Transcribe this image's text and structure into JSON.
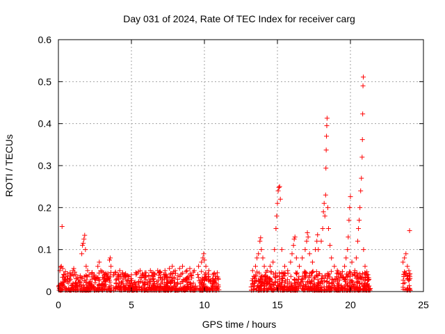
{
  "chart_data": {
    "type": "scatter",
    "title": "Day 031 of 2024, Rate Of TEC Index for receiver carg",
    "xlabel": "GPS time / hours",
    "ylabel": "ROTI / TECUs",
    "xlim": [
      0,
      25
    ],
    "ylim": [
      0,
      0.6
    ],
    "xticks": [
      0,
      5,
      10,
      15,
      20,
      25
    ],
    "xtick_labels": [
      "0",
      "5",
      "10",
      "15",
      "20",
      "25"
    ],
    "yticks": [
      0,
      0.1,
      0.2,
      0.3,
      0.4,
      0.5,
      0.6
    ],
    "ytick_labels": [
      "0",
      "0.1",
      "0.2",
      "0.3",
      "0.4",
      "0.5",
      "0.6"
    ],
    "grid": true,
    "marker": "+",
    "color": "#ff0000",
    "series": [
      {
        "name": "ROTI",
        "points": [
          [
            0.1,
            0.05
          ],
          [
            0.15,
            0.058
          ],
          [
            0.2,
            0.06
          ],
          [
            0.25,
            0.155
          ],
          [
            0.3,
            0.055
          ],
          [
            0.4,
            0.04
          ],
          [
            0.5,
            0.035
          ],
          [
            0.6,
            0.03
          ],
          [
            0.8,
            0.045
          ],
          [
            1.0,
            0.05
          ],
          [
            1.05,
            0.055
          ],
          [
            1.2,
            0.04
          ],
          [
            1.6,
            0.09
          ],
          [
            1.65,
            0.11
          ],
          [
            1.7,
            0.115
          ],
          [
            1.75,
            0.125
          ],
          [
            1.8,
            0.134
          ],
          [
            1.85,
            0.1
          ],
          [
            1.9,
            0.06
          ],
          [
            2.0,
            0.05
          ],
          [
            2.1,
            0.04
          ],
          [
            2.3,
            0.035
          ],
          [
            2.5,
            0.03
          ],
          [
            2.7,
            0.06
          ],
          [
            2.8,
            0.07
          ],
          [
            2.9,
            0.05
          ],
          [
            3.1,
            0.045
          ],
          [
            3.3,
            0.04
          ],
          [
            3.5,
            0.075
          ],
          [
            3.55,
            0.08
          ],
          [
            3.6,
            0.06
          ],
          [
            3.8,
            0.04
          ],
          [
            4.0,
            0.03
          ],
          [
            4.2,
            0.05
          ],
          [
            4.4,
            0.045
          ],
          [
            4.6,
            0.04
          ],
          [
            4.8,
            0.035
          ],
          [
            5.0,
            0.04
          ],
          [
            5.3,
            0.045
          ],
          [
            5.6,
            0.05
          ],
          [
            5.8,
            0.04
          ],
          [
            6.0,
            0.045
          ],
          [
            6.3,
            0.05
          ],
          [
            6.6,
            0.04
          ],
          [
            6.8,
            0.05
          ],
          [
            7.0,
            0.045
          ],
          [
            7.3,
            0.05
          ],
          [
            7.6,
            0.055
          ],
          [
            7.8,
            0.06
          ],
          [
            8.0,
            0.05
          ],
          [
            8.3,
            0.055
          ],
          [
            8.5,
            0.06
          ],
          [
            8.8,
            0.05
          ],
          [
            9.0,
            0.055
          ],
          [
            9.3,
            0.05
          ],
          [
            9.6,
            0.06
          ],
          [
            9.8,
            0.07
          ],
          [
            9.9,
            0.08
          ],
          [
            9.95,
            0.09
          ],
          [
            10.0,
            0.075
          ],
          [
            10.1,
            0.06
          ],
          [
            10.3,
            0.05
          ],
          [
            10.6,
            0.04
          ],
          [
            10.9,
            0.035
          ],
          [
            13.3,
            0.05
          ],
          [
            13.5,
            0.06
          ],
          [
            13.6,
            0.08
          ],
          [
            13.7,
            0.09
          ],
          [
            13.8,
            0.12
          ],
          [
            13.85,
            0.128
          ],
          [
            13.9,
            0.1
          ],
          [
            14.0,
            0.08
          ],
          [
            14.1,
            0.06
          ],
          [
            14.3,
            0.05
          ],
          [
            14.5,
            0.06
          ],
          [
            14.7,
            0.07
          ],
          [
            14.8,
            0.1
          ],
          [
            14.9,
            0.15
          ],
          [
            14.95,
            0.18
          ],
          [
            15.0,
            0.21
          ],
          [
            15.05,
            0.24
          ],
          [
            15.1,
            0.248
          ],
          [
            15.15,
            0.25
          ],
          [
            15.2,
            0.22
          ],
          [
            15.3,
            0.1
          ],
          [
            15.5,
            0.06
          ],
          [
            15.7,
            0.05
          ],
          [
            15.9,
            0.07
          ],
          [
            16.0,
            0.09
          ],
          [
            16.1,
            0.11
          ],
          [
            16.15,
            0.125
          ],
          [
            16.2,
            0.13
          ],
          [
            16.3,
            0.08
          ],
          [
            16.5,
            0.06
          ],
          [
            16.7,
            0.08
          ],
          [
            16.9,
            0.1
          ],
          [
            17.0,
            0.12
          ],
          [
            17.05,
            0.14
          ],
          [
            17.1,
            0.13
          ],
          [
            17.2,
            0.09
          ],
          [
            17.4,
            0.07
          ],
          [
            17.6,
            0.1
          ],
          [
            17.7,
            0.12
          ],
          [
            17.75,
            0.135
          ],
          [
            17.8,
            0.1
          ],
          [
            18.0,
            0.12
          ],
          [
            18.1,
            0.15
          ],
          [
            18.15,
            0.19
          ],
          [
            18.2,
            0.21
          ],
          [
            18.25,
            0.18
          ],
          [
            18.3,
            0.23
          ],
          [
            18.32,
            0.294
          ],
          [
            18.34,
            0.337
          ],
          [
            18.36,
            0.37
          ],
          [
            18.38,
            0.395
          ],
          [
            18.4,
            0.413
          ],
          [
            18.45,
            0.2
          ],
          [
            18.5,
            0.15
          ],
          [
            18.6,
            0.11
          ],
          [
            18.7,
            0.08
          ],
          [
            18.9,
            0.06
          ],
          [
            19.1,
            0.05
          ],
          [
            19.3,
            0.04
          ],
          [
            19.5,
            0.035
          ],
          [
            19.6,
            0.06
          ],
          [
            19.7,
            0.08
          ],
          [
            19.8,
            0.1
          ],
          [
            19.85,
            0.13
          ],
          [
            19.9,
            0.17
          ],
          [
            19.95,
            0.2
          ],
          [
            20.0,
            0.226
          ],
          [
            20.1,
            0.07
          ],
          [
            20.3,
            0.05
          ],
          [
            20.4,
            0.08
          ],
          [
            20.5,
            0.12
          ],
          [
            20.55,
            0.15
          ],
          [
            20.6,
            0.17
          ],
          [
            20.65,
            0.2
          ],
          [
            20.7,
            0.24
          ],
          [
            20.75,
            0.27
          ],
          [
            20.8,
            0.32
          ],
          [
            20.82,
            0.362
          ],
          [
            20.84,
            0.423
          ],
          [
            20.86,
            0.49
          ],
          [
            20.88,
            0.511
          ],
          [
            20.9,
            0.1
          ],
          [
            21.0,
            0.06
          ],
          [
            21.2,
            0.04
          ],
          [
            23.6,
            0.07
          ],
          [
            23.7,
            0.08
          ],
          [
            23.8,
            0.09
          ],
          [
            23.9,
            0.06
          ],
          [
            24.0,
            0.05
          ],
          [
            24.05,
            0.145
          ]
        ]
      }
    ]
  }
}
